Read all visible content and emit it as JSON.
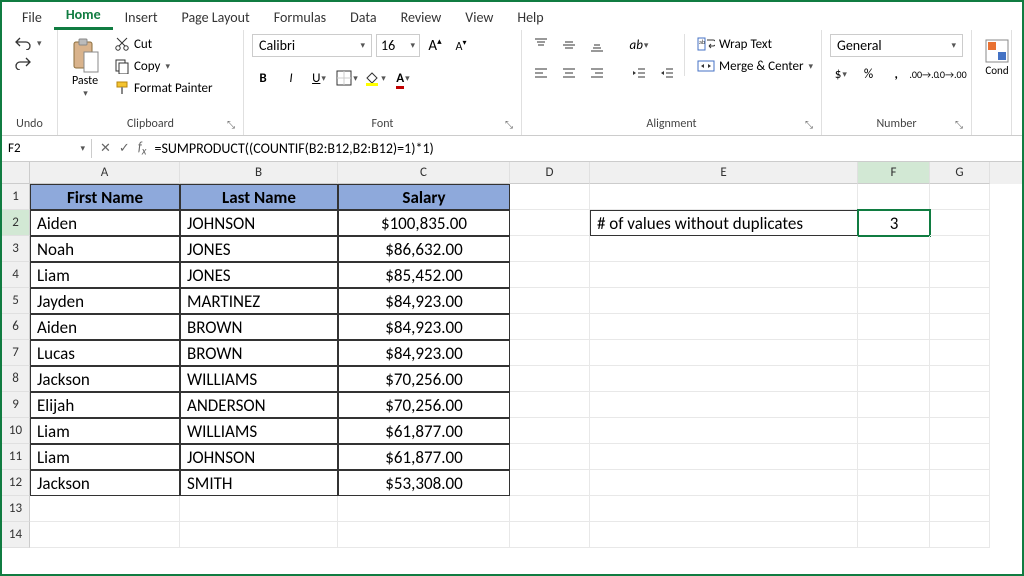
{
  "tabs": [
    "File",
    "Home",
    "Insert",
    "Page Layout",
    "Formulas",
    "Data",
    "Review",
    "View",
    "Help"
  ],
  "active_tab": "Home",
  "ribbon": {
    "undo_label": "Undo",
    "clipboard": {
      "paste": "Paste",
      "cut": "Cut",
      "copy": "Copy",
      "fmt": "Format Painter",
      "label": "Clipboard"
    },
    "font": {
      "name": "Calibri",
      "size": "16",
      "label": "Font"
    },
    "alignment": {
      "wrap": "Wrap Text",
      "merge": "Merge & Center",
      "label": "Alignment"
    },
    "number": {
      "format": "General",
      "label": "Number"
    },
    "cond": "Cond"
  },
  "namebox": "F2",
  "formula": "=SUMPRODUCT((COUNTIF(B2:B12,B2:B12)=1)*1)",
  "columns": [
    "A",
    "B",
    "C",
    "D",
    "E",
    "F",
    "G"
  ],
  "col_widths": {
    "A": 150,
    "B": 158,
    "C": 172,
    "D": 80,
    "E": 268,
    "F": 72,
    "G": 60
  },
  "headers": [
    "First Name",
    "Last Name",
    "Salary"
  ],
  "header_bg": "#8ea9db",
  "table_border": "#333333",
  "rows": [
    [
      "Aiden",
      "JOHNSON",
      "$100,835.00"
    ],
    [
      "Noah",
      "JONES",
      "$86,632.00"
    ],
    [
      "Liam",
      "JONES",
      "$85,452.00"
    ],
    [
      "Jayden",
      "MARTINEZ",
      "$84,923.00"
    ],
    [
      "Aiden",
      "BROWN",
      "$84,923.00"
    ],
    [
      "Lucas",
      "BROWN",
      "$84,923.00"
    ],
    [
      "Jackson",
      "WILLIAMS",
      "$70,256.00"
    ],
    [
      "Elijah",
      "ANDERSON",
      "$70,256.00"
    ],
    [
      "Liam",
      "WILLIAMS",
      "$61,877.00"
    ],
    [
      "Liam",
      "JOHNSON",
      "$61,877.00"
    ],
    [
      "Jackson",
      "SMITH",
      "$53,308.00"
    ]
  ],
  "side_label": "# of values without duplicates",
  "side_value": "3",
  "selected_cell": "F2",
  "accent": "#107c41",
  "grid_color": "#e8e8e8"
}
